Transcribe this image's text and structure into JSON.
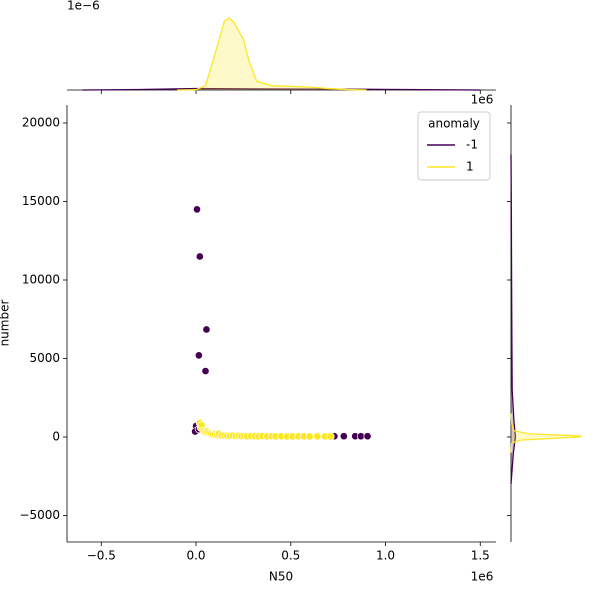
{
  "chart_data": {
    "type": "scatter",
    "x_label": "N50",
    "y_label": "number",
    "x_offset_label": "1e6",
    "xlim": [
      -681000,
      1583000
    ],
    "ylim": [
      -6688,
      21146
    ],
    "xticks": [
      {
        "value": -500000,
        "label": "−0.5"
      },
      {
        "value": 0,
        "label": "0.0"
      },
      {
        "value": 500000,
        "label": "0.5"
      },
      {
        "value": 1000000,
        "label": "1.0"
      },
      {
        "value": 1500000,
        "label": "1.5"
      }
    ],
    "yticks": [
      {
        "value": -5000,
        "label": "−5000"
      },
      0,
      5000,
      10000,
      15000,
      20000
    ],
    "legend": {
      "title": "anomaly",
      "position": "upper right"
    },
    "series": [
      {
        "name": "-1",
        "color": "#440154",
        "x": [
          5000,
          20000,
          55000,
          15000,
          50000,
          0,
          -5000,
          15000,
          730000,
          780000,
          840000,
          870000,
          905000
        ],
        "values": [
          14500,
          11500,
          6850,
          5200,
          4200,
          700,
          350,
          500,
          50,
          50,
          50,
          50,
          50
        ]
      },
      {
        "name": "1",
        "color": "#fde725",
        "x": [
          20000,
          25000,
          30000,
          40000,
          50000,
          60000,
          70000,
          80000,
          90000,
          100000,
          110000,
          120000,
          135000,
          150000,
          165000,
          180000,
          195000,
          210000,
          225000,
          240000,
          255000,
          270000,
          290000,
          310000,
          330000,
          350000,
          375000,
          400000,
          420000,
          450000,
          480000,
          510000,
          540000,
          570000,
          600000,
          640000,
          680000,
          710000
        ],
        "values": [
          900,
          600,
          750,
          400,
          300,
          350,
          250,
          200,
          150,
          180,
          120,
          200,
          100,
          90,
          80,
          70,
          100,
          60,
          80,
          50,
          60,
          40,
          60,
          50,
          40,
          60,
          40,
          50,
          40,
          50,
          30,
          40,
          50,
          40,
          30,
          40,
          40,
          30
        ]
      }
    ],
    "top_marginal": {
      "offset_label": "1e−6",
      "x_offset_label": "1e6",
      "ylim": [
        0,
        6.25
      ],
      "series": [
        {
          "color": "#440154",
          "x": [
            -600000,
            -300000,
            0,
            300000,
            600000,
            900000,
            1200000,
            1500000
          ],
          "values": [
            0,
            0.03,
            0.1,
            0.08,
            0.06,
            0.05,
            0.02,
            0
          ]
        },
        {
          "color": "#fde725",
          "x": [
            -100000,
            0,
            50000,
            100000,
            150000,
            175000,
            200000,
            250000,
            280000,
            320000,
            400000,
            500000,
            600000,
            700000,
            800000,
            900000
          ],
          "values": [
            0,
            0.02,
            0.3,
            2.5,
            4.8,
            5.0,
            4.7,
            3.5,
            2.0,
            0.6,
            0.3,
            0.25,
            0.2,
            0.1,
            0.03,
            0
          ]
        }
      ]
    },
    "right_marginal": {
      "xlim": [
        0,
        0.0024
      ],
      "series": [
        {
          "color": "#440154",
          "y": [
            -3000,
            -1000,
            0,
            1000,
            3000,
            6000,
            10000,
            15000,
            18000
          ],
          "values": [
            0,
            8e-05,
            0.00015,
            0.0001,
            4e-05,
            3e-05,
            2e-05,
            1e-05,
            0
          ]
        },
        {
          "color": "#fde725",
          "y": [
            -1000,
            -400,
            -200,
            0,
            50,
            100,
            200,
            400,
            800,
            1500
          ],
          "values": [
            0,
            2e-05,
            0.0003,
            0.0023,
            0.0024,
            0.002,
            0.0006,
            0.0001,
            3e-05,
            0
          ]
        }
      ]
    }
  }
}
